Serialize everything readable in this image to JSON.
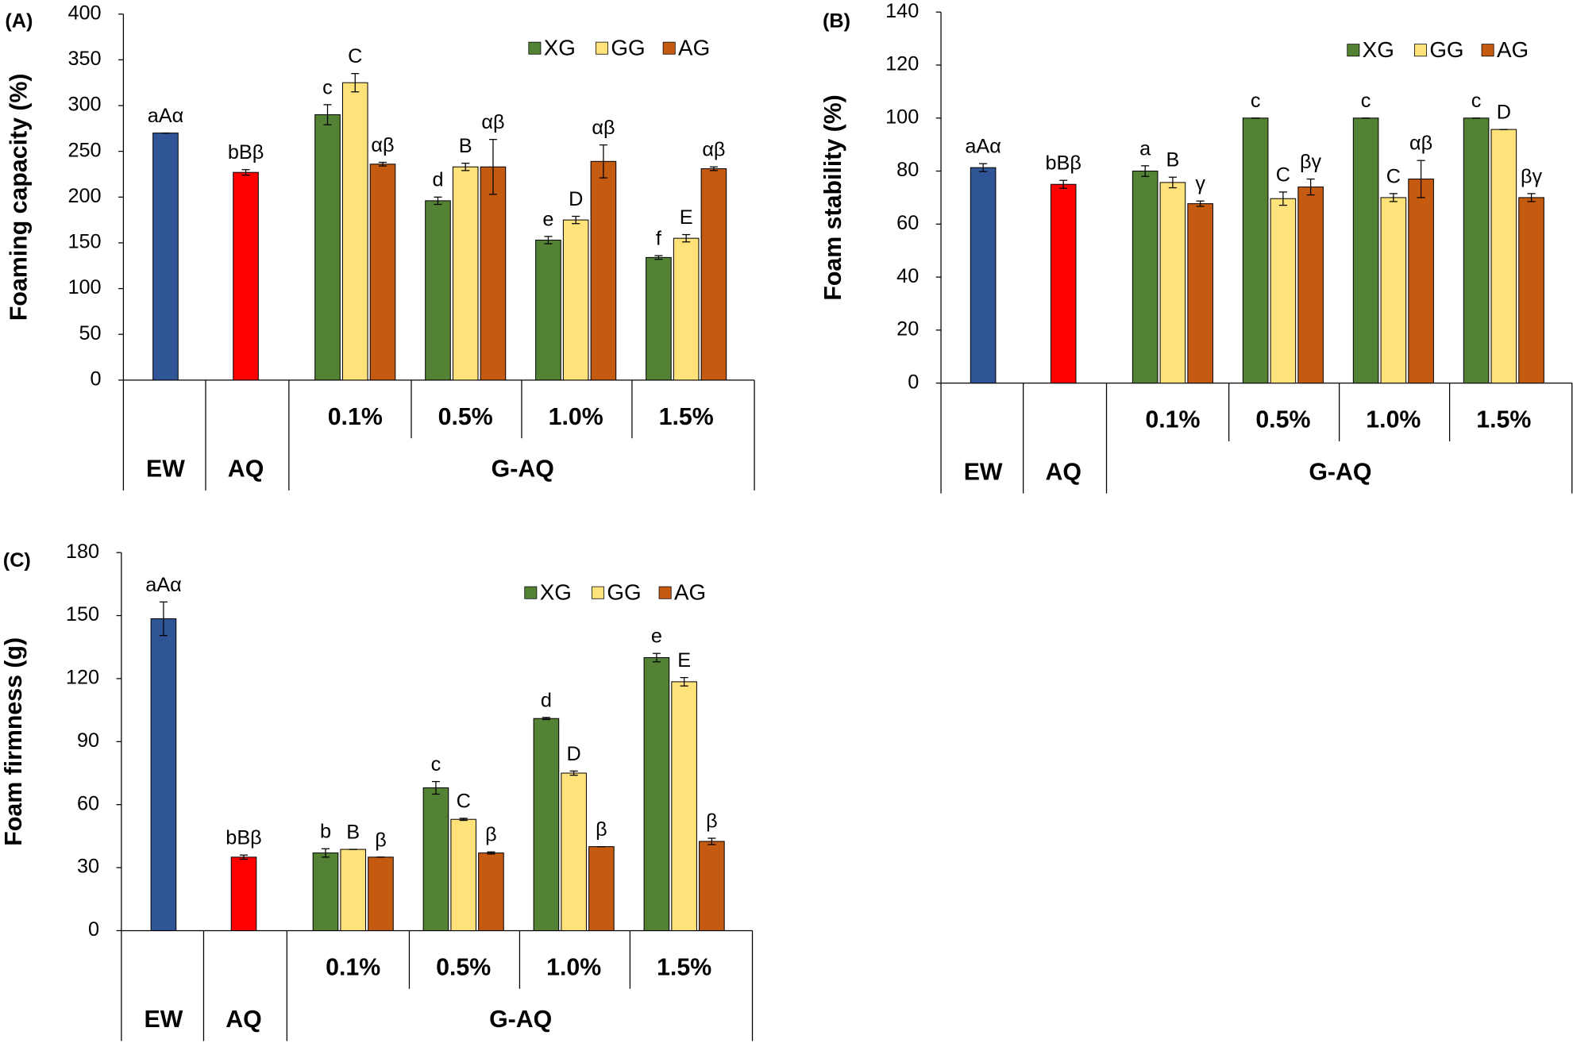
{
  "chart_data": [
    {
      "type": "bar",
      "panel": "(A)",
      "y_label": "Foaming capacity (%)",
      "ylim": [
        0,
        400
      ],
      "yticks": [
        0,
        50,
        100,
        150,
        200,
        250,
        300,
        350,
        400
      ],
      "controls": {
        "categories": [
          "EW",
          "AQ"
        ],
        "values": [
          270,
          227
        ],
        "errors": [
          0,
          3
        ],
        "letters": [
          "aAα",
          "bBβ"
        ],
        "colors": [
          "#2f5597",
          "#ff0000"
        ]
      },
      "group_label": "G-AQ",
      "categories": [
        "0.1%",
        "0.5%",
        "1.0%",
        "1.5%"
      ],
      "series": [
        {
          "name": "XG",
          "color": "#548235",
          "values": [
            290,
            196,
            153,
            134
          ],
          "errors": [
            11,
            4,
            4,
            2
          ],
          "letters": [
            "c",
            "d",
            "e",
            "f"
          ]
        },
        {
          "name": "GG",
          "color": "#ffe27a",
          "values": [
            325,
            233,
            175,
            155
          ],
          "errors": [
            10,
            4,
            4,
            4
          ],
          "letters": [
            "C",
            "B",
            "D",
            "E"
          ]
        },
        {
          "name": "AG",
          "color": "#c55a11",
          "values": [
            236,
            233,
            239,
            231
          ],
          "errors": [
            2,
            30,
            18,
            2
          ],
          "letters": [
            "αβ",
            "αβ",
            "αβ",
            "αβ"
          ]
        }
      ]
    },
    {
      "type": "bar",
      "panel": "(B)",
      "y_label": "Foam stability (%)",
      "ylim": [
        0,
        140
      ],
      "yticks": [
        0,
        20,
        40,
        60,
        80,
        100,
        120,
        140
      ],
      "controls": {
        "categories": [
          "EW",
          "AQ"
        ],
        "values": [
          81.3,
          75
        ],
        "errors": [
          1.5,
          1.5
        ],
        "letters": [
          "aAα",
          "bBβ"
        ],
        "colors": [
          "#2f5597",
          "#ff0000"
        ]
      },
      "group_label": "G-AQ",
      "categories": [
        "0.1%",
        "0.5%",
        "1.0%",
        "1.5%"
      ],
      "series": [
        {
          "name": "XG",
          "color": "#548235",
          "values": [
            80,
            100,
            100,
            100
          ],
          "errors": [
            2,
            0,
            0,
            0
          ],
          "letters": [
            "a",
            "c",
            "c",
            "c"
          ]
        },
        {
          "name": "GG",
          "color": "#ffe27a",
          "values": [
            75.7,
            69.6,
            70,
            95.7
          ],
          "errors": [
            2,
            2.5,
            1.5,
            0
          ],
          "letters": [
            "B",
            "C",
            "C",
            "D"
          ]
        },
        {
          "name": "AG",
          "color": "#c55a11",
          "values": [
            67.7,
            74,
            77,
            70
          ],
          "errors": [
            1,
            3,
            7,
            1.5
          ],
          "letters": [
            "γ",
            "βγ",
            "αβ",
            "βγ"
          ]
        }
      ]
    },
    {
      "type": "bar",
      "panel": "(C)",
      "y_label": "Foam firmness (g)",
      "ylim": [
        0,
        180
      ],
      "yticks": [
        0,
        30,
        60,
        90,
        120,
        150,
        180
      ],
      "controls": {
        "categories": [
          "EW",
          "AQ"
        ],
        "values": [
          148.5,
          35
        ],
        "errors": [
          8,
          1
        ],
        "letters": [
          "aAα",
          "bBβ"
        ],
        "colors": [
          "#2f5597",
          "#ff0000"
        ]
      },
      "group_label": "G-AQ",
      "categories": [
        "0.1%",
        "0.5%",
        "1.0%",
        "1.5%"
      ],
      "series": [
        {
          "name": "XG",
          "color": "#548235",
          "values": [
            37,
            68,
            101,
            130
          ],
          "errors": [
            2,
            3,
            0.5,
            2
          ],
          "letters": [
            "b",
            "c",
            "d",
            "e"
          ]
        },
        {
          "name": "GG",
          "color": "#ffe27a",
          "values": [
            38.7,
            53,
            75,
            118.5
          ],
          "errors": [
            0,
            0.5,
            1,
            2
          ],
          "letters": [
            "B",
            "C",
            "D",
            "E"
          ]
        },
        {
          "name": "AG",
          "color": "#c55a11",
          "values": [
            35,
            37,
            40,
            42.5
          ],
          "errors": [
            0,
            0.5,
            0,
            1.5
          ],
          "letters": [
            "β",
            "β",
            "β",
            "β"
          ]
        }
      ]
    }
  ]
}
